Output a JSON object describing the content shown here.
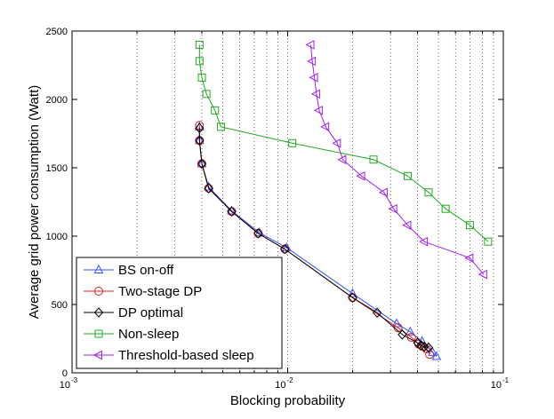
{
  "chart_data": {
    "type": "line",
    "title": "",
    "xlabel": "Blocking probability",
    "ylabel": "Average grid power consumption (Watt)",
    "xscale": "log",
    "xlim": [
      0.001,
      0.1
    ],
    "ylim": [
      0,
      2500
    ],
    "grid": "x-dotted",
    "legend_position": "bottom-left",
    "x_ticks": [
      {
        "value": 0.001,
        "base": "10",
        "exp": "-3"
      },
      {
        "value": 0.01,
        "base": "10",
        "exp": "-2"
      },
      {
        "value": 0.1,
        "base": "10",
        "exp": "-1"
      }
    ],
    "y_ticks": [
      {
        "value": 0,
        "label": "0"
      },
      {
        "value": 500,
        "label": "500"
      },
      {
        "value": 1000,
        "label": "1000"
      },
      {
        "value": 1500,
        "label": "1500"
      },
      {
        "value": 2000,
        "label": "2000"
      },
      {
        "value": 2500,
        "label": "2500"
      }
    ],
    "series": [
      {
        "name": "BS on-off",
        "color": "#3355ff",
        "marker": "triangle-up",
        "x": [
          0.0039,
          0.0039,
          0.004,
          0.0043,
          0.0055,
          0.0074,
          0.0099,
          0.02,
          0.032,
          0.037,
          0.042,
          0.047,
          0.049
        ],
        "y": [
          1800,
          1700,
          1530,
          1360,
          1185,
          1025,
          915,
          580,
          360,
          300,
          230,
          150,
          120
        ]
      },
      {
        "name": "Two-stage DP",
        "color": "#e02020",
        "marker": "circle",
        "x": [
          0.0039,
          0.0039,
          0.004,
          0.0043,
          0.0055,
          0.0073,
          0.0097,
          0.02,
          0.0325,
          0.0375,
          0.0405,
          0.042,
          0.044,
          0.0455
        ],
        "y": [
          1810,
          1700,
          1530,
          1350,
          1180,
          1020,
          905,
          550,
          330,
          260,
          210,
          195,
          175,
          135
        ]
      },
      {
        "name": "DP optimal",
        "color": "#000000",
        "marker": "diamond",
        "x": [
          0.0039,
          0.0039,
          0.004,
          0.0043,
          0.0055,
          0.0073,
          0.0097,
          0.02,
          0.026,
          0.034,
          0.04,
          0.0415,
          0.043,
          0.045
        ],
        "y": [
          1790,
          1700,
          1530,
          1350,
          1180,
          1020,
          905,
          550,
          440,
          280,
          220,
          200,
          190,
          185
        ]
      },
      {
        "name": "Non-sleep",
        "color": "#1fa81f",
        "marker": "square",
        "x": [
          0.0039,
          0.0039,
          0.004,
          0.0042,
          0.0046,
          0.0049,
          0.0105,
          0.025,
          0.036,
          0.045,
          0.054,
          0.07,
          0.085
        ],
        "y": [
          2400,
          2280,
          2160,
          2040,
          1920,
          1800,
          1680,
          1560,
          1440,
          1320,
          1200,
          1080,
          960
        ]
      },
      {
        "name": "Threshold-based sleep",
        "color": "#a020f0",
        "marker": "triangle-left",
        "x": [
          0.0128,
          0.013,
          0.0133,
          0.0136,
          0.014,
          0.015,
          0.017,
          0.018,
          0.022,
          0.028,
          0.031,
          0.036,
          0.043,
          0.07,
          0.081
        ],
        "y": [
          2400,
          2280,
          2160,
          2040,
          1920,
          1800,
          1680,
          1560,
          1440,
          1320,
          1200,
          1080,
          960,
          840,
          720
        ]
      }
    ]
  }
}
